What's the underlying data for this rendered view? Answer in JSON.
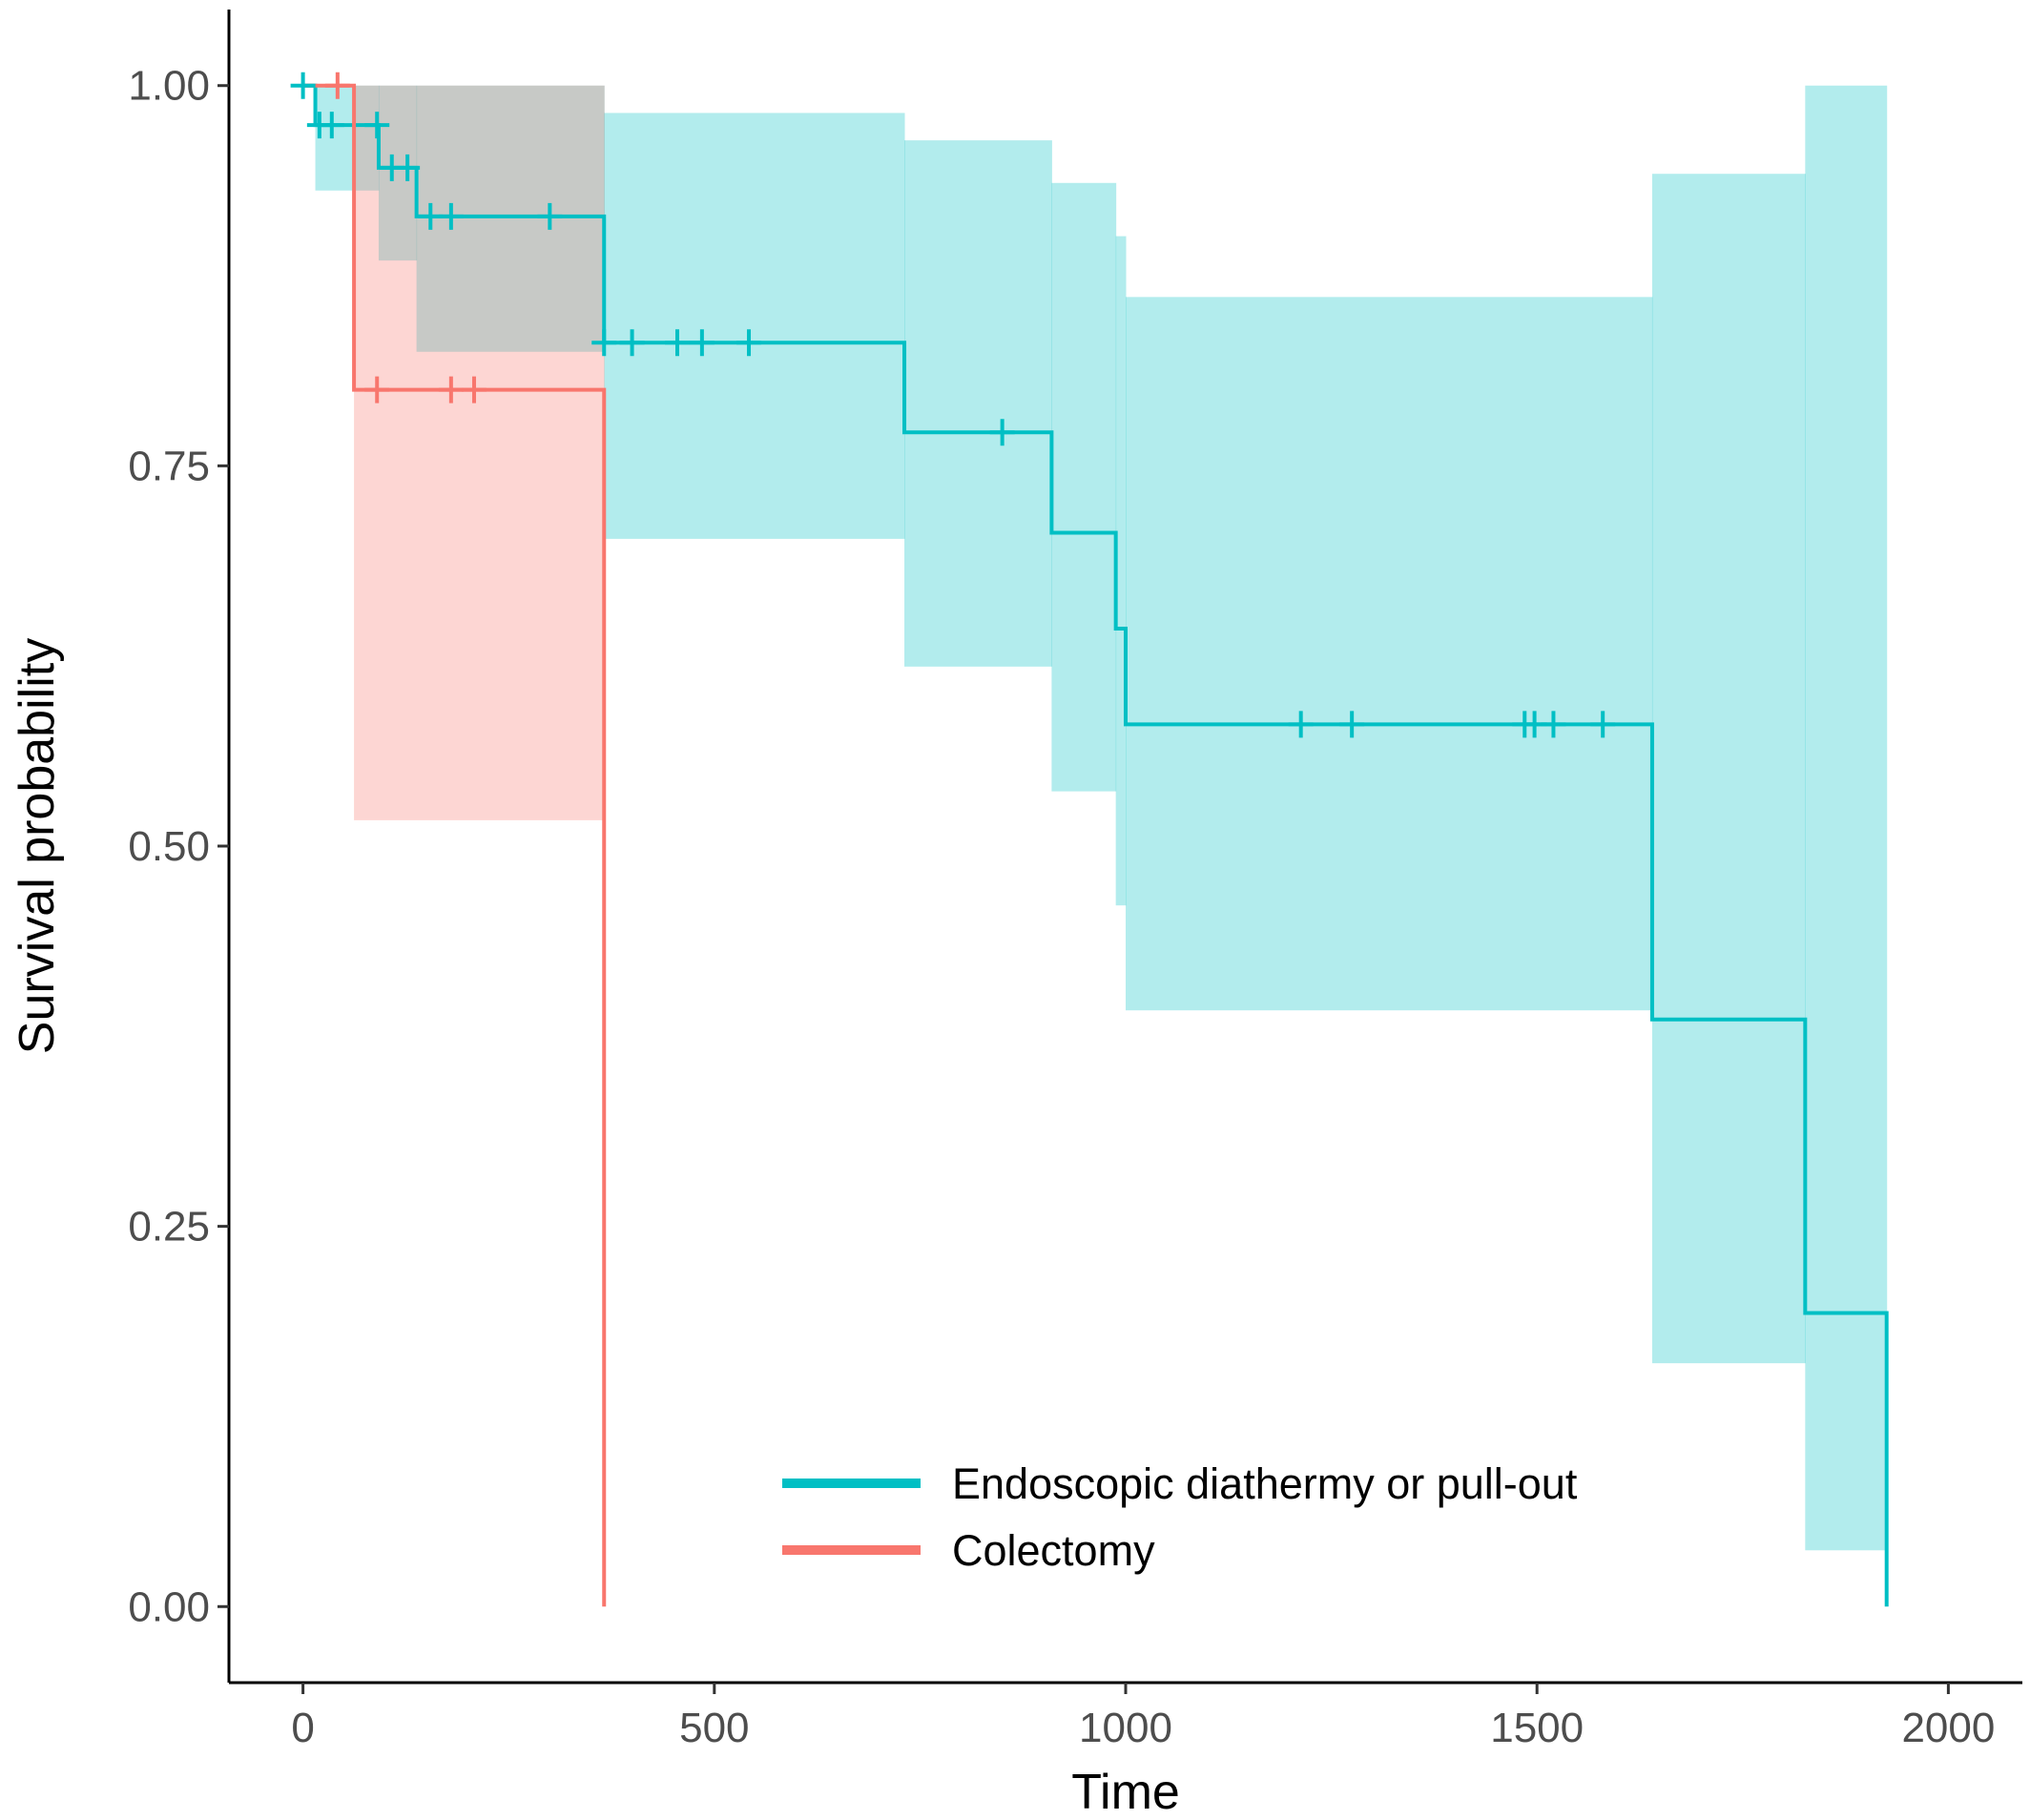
{
  "chart_data": {
    "type": "line",
    "subtype": "kaplan-meier",
    "xlabel": "Time",
    "ylabel": "Survival probability",
    "xlim": [
      -90,
      2090
    ],
    "ylim": [
      -0.05,
      1.05
    ],
    "xticks": [
      0,
      500,
      1000,
      1500,
      2000
    ],
    "yticks": [
      0,
      0.25,
      0.5,
      0.75,
      1
    ],
    "ytick_labels": [
      "0.00",
      "0.25",
      "0.50",
      "0.75",
      "1.00"
    ],
    "grid": false,
    "legend_position": "bottom-center",
    "series": [
      {
        "name": "Endoscopic diathermy or pull-out",
        "color": "#00BFC4",
        "band_color": "#B2EBEC",
        "steps": [
          {
            "t": 0,
            "s": 1.0,
            "lower": 1.0,
            "upper": 1.0
          },
          {
            "t": 15,
            "s": 0.974,
            "lower": 0.931,
            "upper": 1.0
          },
          {
            "t": 92,
            "s": 0.946,
            "lower": 0.885,
            "upper": 1.0
          },
          {
            "t": 138,
            "s": 0.914,
            "lower": 0.825,
            "upper": 1.0
          },
          {
            "t": 366,
            "s": 0.831,
            "lower": 0.702,
            "upper": 0.982
          },
          {
            "t": 731,
            "s": 0.772,
            "lower": 0.618,
            "upper": 0.964
          },
          {
            "t": 910,
            "s": 0.706,
            "lower": 0.536,
            "upper": 0.936
          },
          {
            "t": 988,
            "s": 0.643,
            "lower": 0.461,
            "upper": 0.901
          },
          {
            "t": 1000,
            "s": 0.58,
            "lower": 0.392,
            "upper": 0.861
          },
          {
            "t": 1640,
            "s": 0.386,
            "lower": 0.16,
            "upper": 0.942
          },
          {
            "t": 1826,
            "s": 0.193,
            "lower": 0.037,
            "upper": 1.0
          },
          {
            "t": 1925,
            "s": 0.0,
            "lower": null,
            "upper": null
          }
        ],
        "censor_times": [
          0,
          20,
          35,
          90,
          108,
          127,
          155,
          180,
          300,
          366,
          400,
          455,
          485,
          542,
          850,
          1213,
          1275,
          1485,
          1497,
          1520,
          1580
        ]
      },
      {
        "name": "Colectomy",
        "color": "#F8766D",
        "band_color": "#FCD3D1",
        "steps": [
          {
            "t": 0,
            "s": 1.0,
            "lower": 1.0,
            "upper": 1.0
          },
          {
            "t": 62,
            "s": 0.8,
            "lower": 0.517,
            "upper": 1.0
          },
          {
            "t": 366,
            "s": 0.0,
            "lower": null,
            "upper": null
          }
        ],
        "censor_times": [
          42,
          90,
          180,
          208
        ]
      }
    ]
  }
}
